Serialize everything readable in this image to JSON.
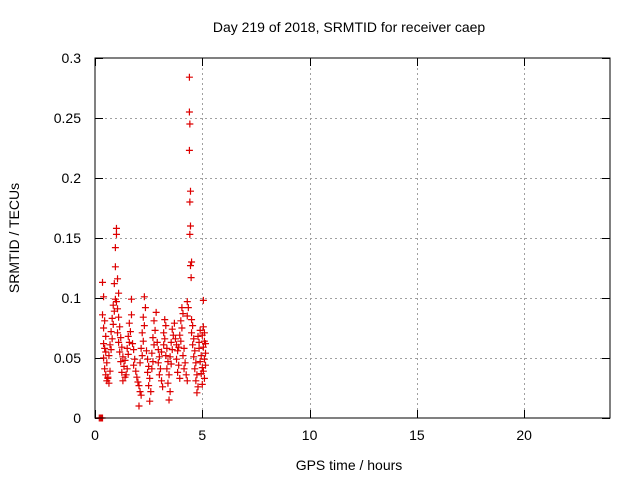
{
  "chart_data": {
    "type": "scatter",
    "title": "Day 219 of 2018, SRMTID for receiver caep",
    "xlabel": "GPS time / hours",
    "ylabel": "SRMTID / TECUs",
    "xlim": [
      0,
      24
    ],
    "ylim": [
      0,
      0.3
    ],
    "x_ticks": [
      0,
      5,
      10,
      15,
      20
    ],
    "x_tick_labels": [
      "0",
      "5",
      "10",
      "15",
      "20"
    ],
    "y_ticks": [
      0,
      0.05,
      0.1,
      0.15,
      0.2,
      0.25,
      0.3
    ],
    "y_tick_labels": [
      "0",
      "0.05",
      "0.1",
      "0.15",
      "0.2",
      "0.25",
      "0.3"
    ],
    "grid": true,
    "marker": "plus",
    "series": [
      {
        "name": "SRMTID",
        "color": "#dd0000",
        "points": [
          [
            0.2,
            0.0
          ],
          [
            0.25,
            0.0
          ],
          [
            0.3,
            0.0
          ],
          [
            0.35,
            0.0
          ],
          [
            0.35,
            0.113
          ],
          [
            0.4,
            0.101
          ],
          [
            0.35,
            0.086
          ],
          [
            0.45,
            0.081
          ],
          [
            0.4,
            0.075
          ],
          [
            0.5,
            0.068
          ],
          [
            0.4,
            0.062
          ],
          [
            0.45,
            0.058
          ],
          [
            0.5,
            0.055
          ],
          [
            0.4,
            0.05
          ],
          [
            0.55,
            0.046
          ],
          [
            0.45,
            0.041
          ],
          [
            0.5,
            0.036
          ],
          [
            0.6,
            0.033
          ],
          [
            0.55,
            0.031
          ],
          [
            0.65,
            0.029
          ],
          [
            0.6,
            0.034
          ],
          [
            0.7,
            0.039
          ],
          [
            0.65,
            0.052
          ],
          [
            0.75,
            0.057
          ],
          [
            0.7,
            0.061
          ],
          [
            0.8,
            0.066
          ],
          [
            0.75,
            0.072
          ],
          [
            0.85,
            0.078
          ],
          [
            0.8,
            0.083
          ],
          [
            0.9,
            0.089
          ],
          [
            0.85,
            0.094
          ],
          [
            0.95,
            0.099
          ],
          [
            0.9,
            0.112
          ],
          [
            0.95,
            0.126
          ],
          [
            0.95,
            0.142
          ],
          [
            1.0,
            0.158
          ],
          [
            1.0,
            0.153
          ],
          [
            1.05,
            0.116
          ],
          [
            1.1,
            0.104
          ],
          [
            1.0,
            0.097
          ],
          [
            1.05,
            0.091
          ],
          [
            1.1,
            0.084
          ],
          [
            1.15,
            0.076
          ],
          [
            1.05,
            0.071
          ],
          [
            1.2,
            0.067
          ],
          [
            1.1,
            0.063
          ],
          [
            1.25,
            0.059
          ],
          [
            1.15,
            0.055
          ],
          [
            1.3,
            0.051
          ],
          [
            1.2,
            0.047
          ],
          [
            1.35,
            0.043
          ],
          [
            1.25,
            0.038
          ],
          [
            1.4,
            0.034
          ],
          [
            1.3,
            0.031
          ],
          [
            1.45,
            0.036
          ],
          [
            1.5,
            0.041
          ],
          [
            1.4,
            0.048
          ],
          [
            1.55,
            0.053
          ],
          [
            1.5,
            0.058
          ],
          [
            1.6,
            0.063
          ],
          [
            1.55,
            0.068
          ],
          [
            1.65,
            0.072
          ],
          [
            1.6,
            0.079
          ],
          [
            1.7,
            0.086
          ],
          [
            1.7,
            0.099
          ],
          [
            1.75,
            0.062
          ],
          [
            1.8,
            0.057
          ],
          [
            1.85,
            0.049
          ],
          [
            1.8,
            0.044
          ],
          [
            1.9,
            0.039
          ],
          [
            1.95,
            0.034
          ],
          [
            2.0,
            0.03
          ],
          [
            2.05,
            0.027
          ],
          [
            2.1,
            0.022
          ],
          [
            2.05,
            0.01
          ],
          [
            2.15,
            0.019
          ],
          [
            2.1,
            0.046
          ],
          [
            2.2,
            0.052
          ],
          [
            2.15,
            0.058
          ],
          [
            2.25,
            0.064
          ],
          [
            2.2,
            0.071
          ],
          [
            2.3,
            0.077
          ],
          [
            2.25,
            0.084
          ],
          [
            2.35,
            0.092
          ],
          [
            2.3,
            0.101
          ],
          [
            2.4,
            0.056
          ],
          [
            2.45,
            0.049
          ],
          [
            2.5,
            0.043
          ],
          [
            2.45,
            0.038
          ],
          [
            2.55,
            0.033
          ],
          [
            2.5,
            0.027
          ],
          [
            2.6,
            0.022
          ],
          [
            2.55,
            0.014
          ],
          [
            2.65,
            0.041
          ],
          [
            2.7,
            0.047
          ],
          [
            2.65,
            0.054
          ],
          [
            2.75,
            0.061
          ],
          [
            2.7,
            0.067
          ],
          [
            2.8,
            0.073
          ],
          [
            2.75,
            0.081
          ],
          [
            2.85,
            0.088
          ],
          [
            2.9,
            0.063
          ],
          [
            2.95,
            0.057
          ],
          [
            3.0,
            0.051
          ],
          [
            2.95,
            0.046
          ],
          [
            3.05,
            0.041
          ],
          [
            3.0,
            0.036
          ],
          [
            3.1,
            0.031
          ],
          [
            3.15,
            0.026
          ],
          [
            3.1,
            0.055
          ],
          [
            3.2,
            0.061
          ],
          [
            3.25,
            0.066
          ],
          [
            3.2,
            0.071
          ],
          [
            3.3,
            0.077
          ],
          [
            3.25,
            0.082
          ],
          [
            3.35,
            0.058
          ],
          [
            3.3,
            0.052
          ],
          [
            3.4,
            0.047
          ],
          [
            3.35,
            0.041
          ],
          [
            3.45,
            0.036
          ],
          [
            3.4,
            0.029
          ],
          [
            3.5,
            0.022
          ],
          [
            3.45,
            0.015
          ],
          [
            3.55,
            0.045
          ],
          [
            3.5,
            0.051
          ],
          [
            3.6,
            0.057
          ],
          [
            3.55,
            0.063
          ],
          [
            3.65,
            0.069
          ],
          [
            3.6,
            0.074
          ],
          [
            3.7,
            0.079
          ],
          [
            3.75,
            0.066
          ],
          [
            3.8,
            0.061
          ],
          [
            3.85,
            0.056
          ],
          [
            3.8,
            0.049
          ],
          [
            3.9,
            0.044
          ],
          [
            3.85,
            0.038
          ],
          [
            3.95,
            0.033
          ],
          [
            3.9,
            0.059
          ],
          [
            4.0,
            0.064
          ],
          [
            3.95,
            0.069
          ],
          [
            4.05,
            0.075
          ],
          [
            4.0,
            0.081
          ],
          [
            4.1,
            0.087
          ],
          [
            4.05,
            0.092
          ],
          [
            4.15,
            0.058
          ],
          [
            4.1,
            0.052
          ],
          [
            4.2,
            0.046
          ],
          [
            4.15,
            0.041
          ],
          [
            4.25,
            0.036
          ],
          [
            4.3,
            0.031
          ],
          [
            4.3,
            0.097
          ],
          [
            4.35,
            0.092
          ],
          [
            4.3,
            0.085
          ],
          [
            4.4,
            0.284
          ],
          [
            4.4,
            0.255
          ],
          [
            4.42,
            0.245
          ],
          [
            4.4,
            0.223
          ],
          [
            4.45,
            0.189
          ],
          [
            4.42,
            0.18
          ],
          [
            4.45,
            0.16
          ],
          [
            4.42,
            0.153
          ],
          [
            4.5,
            0.13
          ],
          [
            4.45,
            0.127
          ],
          [
            4.48,
            0.117
          ],
          [
            4.5,
            0.082
          ],
          [
            4.55,
            0.077
          ],
          [
            4.5,
            0.071
          ],
          [
            4.6,
            0.066
          ],
          [
            4.55,
            0.061
          ],
          [
            4.65,
            0.056
          ],
          [
            4.6,
            0.051
          ],
          [
            4.7,
            0.046
          ],
          [
            4.65,
            0.041
          ],
          [
            4.75,
            0.036
          ],
          [
            4.7,
            0.031
          ],
          [
            4.8,
            0.026
          ],
          [
            4.75,
            0.021
          ],
          [
            4.85,
            0.063
          ],
          [
            4.8,
            0.068
          ],
          [
            4.9,
            0.073
          ],
          [
            4.85,
            0.058
          ],
          [
            4.95,
            0.052
          ],
          [
            4.9,
            0.047
          ],
          [
            5.0,
            0.042
          ],
          [
            4.95,
            0.037
          ],
          [
            5.05,
            0.076
          ],
          [
            5.0,
            0.069
          ],
          [
            5.1,
            0.064
          ],
          [
            5.05,
            0.059
          ],
          [
            5.15,
            0.054
          ],
          [
            5.1,
            0.049
          ],
          [
            5.15,
            0.044
          ],
          [
            5.05,
            0.039
          ],
          [
            5.1,
            0.033
          ],
          [
            5.0,
            0.028
          ],
          [
            5.15,
            0.062
          ],
          [
            5.1,
            0.071
          ],
          [
            5.05,
            0.098
          ]
        ]
      }
    ]
  }
}
